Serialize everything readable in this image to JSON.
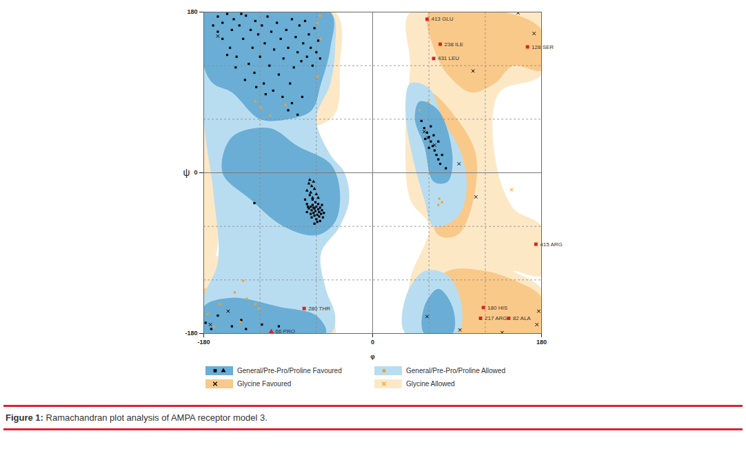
{
  "chart_data": {
    "type": "scatter",
    "x_label": "φ",
    "y_label": "ψ",
    "xlim": [
      -180,
      180
    ],
    "ylim": [
      -180,
      180
    ],
    "xticks": [
      -180,
      0,
      180
    ],
    "yticks": [
      -180,
      0,
      180
    ],
    "reference_lines": {
      "x": [
        -120,
        -60,
        0,
        60,
        120
      ],
      "y": [
        -120,
        -60,
        0,
        60,
        120
      ]
    },
    "regions": [
      {
        "name": "General/Pre-Pro/Proline Favoured",
        "color": "#6aaed6",
        "polygons": [
          [
            [
              -180,
              180
            ],
            [
              -45,
              180
            ],
            [
              -45,
              140
            ],
            [
              -55,
              100
            ],
            [
              -65,
              70
            ],
            [
              -90,
              60
            ],
            [
              -120,
              60
            ],
            [
              -150,
              90
            ],
            [
              -170,
              100
            ],
            [
              -180,
              120
            ]
          ],
          [
            [
              -150,
              40
            ],
            [
              -110,
              50
            ],
            [
              -80,
              30
            ],
            [
              -45,
              10
            ],
            [
              -35,
              -20
            ],
            [
              -40,
              -55
            ],
            [
              -60,
              -70
            ],
            [
              -95,
              -60
            ],
            [
              -130,
              -30
            ],
            [
              -160,
              0
            ]
          ],
          [
            [
              50,
              80
            ],
            [
              70,
              70
            ],
            [
              85,
              20
            ],
            [
              80,
              -10
            ],
            [
              65,
              -10
            ],
            [
              55,
              30
            ],
            [
              45,
              60
            ]
          ],
          [
            [
              -180,
              -180
            ],
            [
              -50,
              -180
            ],
            [
              -60,
              -160
            ],
            [
              -100,
              -150
            ],
            [
              -150,
              -140
            ],
            [
              -180,
              -150
            ]
          ],
          [
            [
              55,
              -180
            ],
            [
              85,
              -180
            ],
            [
              85,
              -150
            ],
            [
              70,
              -130
            ],
            [
              55,
              -150
            ]
          ]
        ]
      },
      {
        "name": "General/Pre-Pro/Proline Allowed",
        "color": "#b9ddf0",
        "polygons": [
          [
            [
              -180,
              180
            ],
            [
              -45,
              180
            ],
            [
              -40,
              140
            ],
            [
              -45,
              100
            ],
            [
              -60,
              60
            ],
            [
              -45,
              20
            ],
            [
              -30,
              0
            ],
            [
              -25,
              -30
            ],
            [
              -35,
              -60
            ],
            [
              -55,
              -90
            ],
            [
              -50,
              -130
            ],
            [
              -40,
              -160
            ],
            [
              -45,
              -180
            ],
            [
              -180,
              -180
            ],
            [
              -180,
              -140
            ],
            [
              -165,
              -100
            ],
            [
              -170,
              -20
            ],
            [
              -180,
              60
            ]
          ],
          [
            [
              40,
              100
            ],
            [
              60,
              95
            ],
            [
              75,
              60
            ],
            [
              95,
              20
            ],
            [
              100,
              -20
            ],
            [
              90,
              -50
            ],
            [
              65,
              -60
            ],
            [
              55,
              -30
            ],
            [
              42,
              20
            ],
            [
              35,
              70
            ]
          ],
          [
            [
              35,
              -180
            ],
            [
              90,
              -180
            ],
            [
              95,
              -150
            ],
            [
              80,
              -115
            ],
            [
              55,
              -110
            ],
            [
              35,
              -140
            ]
          ]
        ]
      },
      {
        "name": "Glycine Favoured",
        "color": "#f9c98a",
        "polygons": [
          [
            [
              60,
              180
            ],
            [
              140,
              180
            ],
            [
              180,
              160
            ],
            [
              180,
              115
            ],
            [
              150,
              120
            ],
            [
              130,
              100
            ],
            [
              105,
              90
            ],
            [
              80,
              110
            ],
            [
              65,
              140
            ]
          ],
          [
            [
              60,
              90
            ],
            [
              90,
              60
            ],
            [
              110,
              20
            ],
            [
              105,
              -40
            ],
            [
              90,
              -70
            ],
            [
              70,
              -70
            ],
            [
              60,
              -30
            ],
            [
              55,
              30
            ]
          ],
          [
            [
              55,
              -180
            ],
            [
              55,
              -140
            ],
            [
              80,
              -110
            ],
            [
              120,
              -110
            ],
            [
              150,
              -120
            ],
            [
              180,
              -140
            ],
            [
              180,
              -180
            ]
          ],
          [
            [
              -180,
              -180
            ],
            [
              -180,
              -130
            ],
            [
              -160,
              -140
            ],
            [
              -140,
              -165
            ],
            [
              -130,
              -180
            ]
          ],
          [
            [
              -180,
              180
            ],
            [
              -180,
              140
            ],
            [
              -165,
              150
            ],
            [
              -160,
              180
            ]
          ]
        ]
      },
      {
        "name": "Glycine Allowed",
        "color": "#fde8c6",
        "polygons": [
          [
            [
              40,
              180
            ],
            [
              180,
              180
            ],
            [
              180,
              110
            ],
            [
              135,
              90
            ],
            [
              130,
              20
            ],
            [
              150,
              -40
            ],
            [
              180,
              -60
            ],
            [
              180,
              -115
            ],
            [
              150,
              -110
            ],
            [
              180,
              -130
            ],
            [
              180,
              -180
            ],
            [
              40,
              -180
            ],
            [
              40,
              -120
            ],
            [
              60,
              -60
            ],
            [
              40,
              -30
            ],
            [
              35,
              50
            ],
            [
              40,
              120
            ]
          ],
          [
            [
              -180,
              -100
            ],
            [
              -140,
              -95
            ],
            [
              -100,
              -120
            ],
            [
              -60,
              -140
            ],
            [
              -40,
              -180
            ],
            [
              -180,
              -180
            ]
          ],
          [
            [
              -180,
              180
            ],
            [
              -40,
              180
            ],
            [
              -35,
              120
            ],
            [
              -45,
              60
            ],
            [
              -180,
              60
            ]
          ],
          [
            [
              -180,
              60
            ],
            [
              -170,
              60
            ],
            [
              -170,
              -100
            ],
            [
              -180,
              -100
            ]
          ]
        ]
      }
    ],
    "series": [
      {
        "name": "General/Pre-Pro/Proline Favoured",
        "color": "#000000",
        "marker": "square",
        "x": [
          -165,
          -160,
          -155,
          -150,
          -148,
          -142,
          -138,
          -135,
          -130,
          -128,
          -125,
          -122,
          -120,
          -118,
          -115,
          -112,
          -110,
          -108,
          -105,
          -102,
          -100,
          -98,
          -95,
          -92,
          -90,
          -88,
          -86,
          -84,
          -82,
          -80,
          -78,
          -76,
          -74,
          -72,
          -70,
          -68,
          -66,
          -64,
          -62,
          -60,
          -58,
          -56,
          -160,
          -152,
          -145,
          -140,
          -132,
          -126,
          -116,
          -106,
          -96,
          -86,
          -165,
          -170,
          -155,
          -136,
          -114,
          -90,
          -80,
          -75,
          -146,
          -124,
          -126,
          -72,
          -70,
          -68,
          -66,
          -65,
          -64,
          -63,
          -62,
          -61,
          -60,
          -59,
          -58,
          -57,
          -56,
          -55,
          -54,
          -53,
          -62,
          -66,
          -60,
          -58,
          -64,
          -67,
          -70,
          -56,
          -52,
          -61,
          -65,
          -59,
          -63,
          -57,
          -69,
          -54,
          -62,
          52,
          55,
          58,
          60,
          62,
          64,
          66,
          68,
          70,
          72,
          56,
          60,
          65,
          70,
          74,
          78,
          62,
          -178,
          -172,
          -165,
          -150,
          -140,
          -118,
          -100,
          -135
        ],
        "values": [
          175,
          168,
          178,
          160,
          172,
          165,
          150,
          176,
          160,
          140,
          170,
          155,
          130,
          165,
          145,
          175,
          120,
          158,
          138,
          168,
          110,
          150,
          128,
          160,
          140,
          100,
          172,
          118,
          152,
          135,
          165,
          125,
          145,
          170,
          130,
          155,
          140,
          120,
          162,
          135,
          148,
          128,
          150,
          140,
          130,
          178,
          122,
          112,
          100,
          92,
          85,
          78,
          158,
          165,
          132,
          104,
          88,
          70,
          65,
          85,
          118,
          96,
          -34,
          -30,
          -35,
          -40,
          -38,
          -42,
          -36,
          -45,
          -40,
          -43,
          -38,
          -47,
          -41,
          -44,
          -39,
          -46,
          -42,
          -50,
          -48,
          -46,
          -52,
          -35,
          -30,
          -25,
          -44,
          -54,
          -45,
          -33,
          -50,
          -55,
          -39,
          -49,
          -38,
          -36,
          -57,
          58,
          50,
          45,
          40,
          35,
          30,
          25,
          20,
          15,
          10,
          38,
          28,
          42,
          35,
          20,
          5,
          52,
          -168,
          -175,
          -160,
          -172,
          -165,
          -170,
          -172,
          -175
        ]
      },
      {
        "name": "General/Pre-Pro/Proline Favoured",
        "color": "#000000",
        "marker": "triangle",
        "x": [
          -68,
          -65,
          -62,
          -70,
          -66,
          -60,
          -64,
          -58,
          -67,
          -63
        ],
        "values": [
          -12,
          -15,
          -18,
          -20,
          -22,
          -24,
          -28,
          -28,
          -8,
          -10
        ]
      },
      {
        "name": "General/Pre-Pro/Proline Allowed",
        "color": "#f0a030",
        "marker": "square",
        "x": [
          -125,
          -119,
          -109,
          -93,
          -59,
          -59,
          -56,
          71,
          74,
          70,
          50,
          59,
          -138,
          -176,
          -163,
          -147,
          -134,
          -125,
          -121,
          -141,
          -169,
          -55
        ],
        "values": [
          80,
          73,
          64,
          76,
          108,
          168,
          176,
          -29,
          -33,
          -36,
          70,
          79,
          -121,
          -158,
          -147,
          -134,
          -141,
          -147,
          -152,
          -167,
          -172,
          150
        ]
      },
      {
        "name": "Glycine Favoured",
        "color": "#000000",
        "marker": "x",
        "x": [
          -165,
          -154,
          -173,
          155,
          172,
          107,
          92,
          110,
          58,
          93,
          138,
          177,
          175,
          59,
          66,
          55
        ],
        "values": [
          153,
          -155,
          -170,
          179,
          156,
          114,
          10,
          -27,
          -161,
          -176,
          -179,
          -155,
          -170,
          39,
          31,
          46
        ]
      },
      {
        "name": "Glycine Allowed",
        "color": "#f0a030",
        "marker": "x",
        "x": [
          148
        ],
        "values": [
          -19
        ]
      }
    ],
    "outliers": {
      "color": "#d7261e",
      "points": [
        {
          "label": "413 GLU",
          "x": 58,
          "y": 172,
          "marker": "square"
        },
        {
          "label": "238 ILE",
          "x": 72,
          "y": 144,
          "marker": "square"
        },
        {
          "label": "431 LEU",
          "x": 65,
          "y": 128,
          "marker": "square"
        },
        {
          "label": "128 SER",
          "x": 165,
          "y": 141,
          "marker": "square"
        },
        {
          "label": "415 ARG",
          "x": 174,
          "y": -80,
          "marker": "square"
        },
        {
          "label": "280 THR",
          "x": -73,
          "y": -152,
          "marker": "square"
        },
        {
          "label": "66 PRO",
          "x": -108,
          "y": -178,
          "marker": "triangle"
        },
        {
          "label": "180 HIS",
          "x": 118,
          "y": -151,
          "marker": "square"
        },
        {
          "label": "217 ARG",
          "x": 115,
          "y": -163,
          "marker": "square"
        },
        {
          "label": "82 ALA",
          "x": 145,
          "y": -163,
          "marker": "square"
        }
      ]
    },
    "caption_label": "Figure 1:",
    "caption": "Ramachandran plot analysis of AMPA receptor model 3."
  }
}
